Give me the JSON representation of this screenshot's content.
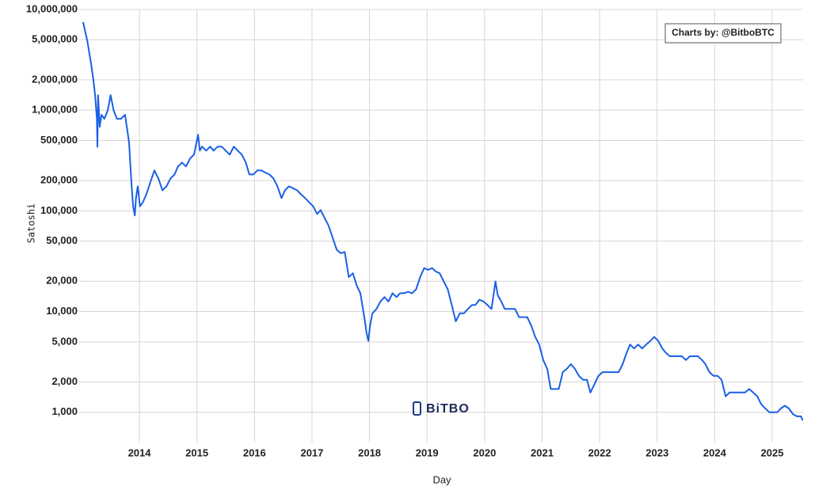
{
  "chart_data": {
    "type": "line",
    "x_label": "Day",
    "y_label": "Satoshi",
    "annotation": "Charts by: @BitboBTC",
    "watermark": "BiTBO",
    "log_y": true,
    "grid": true,
    "xlim": [
      2012.953,
      2025.537
    ],
    "xticks": [
      2014,
      2015,
      2016,
      2017,
      2018,
      2019,
      2020,
      2021,
      2022,
      2023,
      2024,
      2025
    ],
    "ylim": [
      500,
      10000000
    ],
    "yticks": [
      {
        "value": 1000,
        "label": "1,000"
      },
      {
        "value": 2000,
        "label": "2,000"
      },
      {
        "value": 5000,
        "label": "5,000"
      },
      {
        "value": 10000,
        "label": "10,000"
      },
      {
        "value": 20000,
        "label": "20,000"
      },
      {
        "value": 50000,
        "label": "50,000"
      },
      {
        "value": 100000,
        "label": "100,000"
      },
      {
        "value": 200000,
        "label": "200,000"
      },
      {
        "value": 500000,
        "label": "500,000"
      },
      {
        "value": 1000000,
        "label": "1,000,000"
      },
      {
        "value": 2000000,
        "label": "2,000,000"
      },
      {
        "value": 5000000,
        "label": "5,000,000"
      },
      {
        "value": 10000000,
        "label": "10,000,000"
      }
    ],
    "series": [
      {
        "color": "#1a5fe6",
        "x": [
          2013.02,
          2013.09,
          2013.16,
          2013.2,
          2013.23,
          2013.26,
          2013.27,
          2013.28,
          2013.31,
          2013.34,
          2013.39,
          2013.45,
          2013.5,
          2013.55,
          2013.61,
          2013.68,
          2013.75,
          2013.78,
          2013.82,
          2013.86,
          2013.89,
          2013.92,
          2013.94,
          2013.97,
          2014.01,
          2014.06,
          2014.12,
          2014.19,
          2014.26,
          2014.33,
          2014.4,
          2014.47,
          2014.54,
          2014.61,
          2014.67,
          2014.74,
          2014.81,
          2014.88,
          2014.95,
          2015.02,
          2015.05,
          2015.09,
          2015.16,
          2015.23,
          2015.29,
          2015.36,
          2015.43,
          2015.5,
          2015.57,
          2015.64,
          2015.71,
          2015.78,
          2015.85,
          2015.91,
          2015.98,
          2016.05,
          2016.12,
          2016.19,
          2016.26,
          2016.33,
          2016.4,
          2016.47,
          2016.53,
          2016.6,
          2016.67,
          2016.74,
          2016.81,
          2016.88,
          2016.95,
          2017.02,
          2017.09,
          2017.15,
          2017.22,
          2017.29,
          2017.36,
          2017.43,
          2017.5,
          2017.57,
          2017.64,
          2017.71,
          2017.78,
          2017.84,
          2017.91,
          2017.95,
          2017.98,
          2018.01,
          2018.05,
          2018.12,
          2018.19,
          2018.26,
          2018.33,
          2018.4,
          2018.47,
          2018.53,
          2018.6,
          2018.67,
          2018.74,
          2018.81,
          2018.88,
          2018.95,
          2019.02,
          2019.09,
          2019.15,
          2019.22,
          2019.29,
          2019.36,
          2019.43,
          2019.5,
          2019.57,
          2019.64,
          2019.71,
          2019.78,
          2019.84,
          2019.91,
          2019.98,
          2020.05,
          2020.12,
          2020.19,
          2020.23,
          2020.29,
          2020.35,
          2020.4,
          2020.47,
          2020.53,
          2020.6,
          2020.67,
          2020.74,
          2020.81,
          2020.88,
          2020.95,
          2021.02,
          2021.09,
          2021.15,
          2021.22,
          2021.29,
          2021.36,
          2021.43,
          2021.5,
          2021.57,
          2021.64,
          2021.71,
          2021.78,
          2021.84,
          2021.91,
          2021.98,
          2022.05,
          2022.12,
          2022.19,
          2022.26,
          2022.33,
          2022.4,
          2022.47,
          2022.53,
          2022.6,
          2022.67,
          2022.74,
          2022.81,
          2022.88,
          2022.95,
          2023.02,
          2023.09,
          2023.15,
          2023.22,
          2023.29,
          2023.36,
          2023.43,
          2023.5,
          2023.57,
          2023.64,
          2023.71,
          2023.78,
          2023.84,
          2023.91,
          2023.98,
          2024.05,
          2024.12,
          2024.19,
          2024.26,
          2024.33,
          2024.4,
          2024.47,
          2024.53,
          2024.6,
          2024.67,
          2024.74,
          2024.81,
          2024.88,
          2024.95,
          2025.02,
          2025.09,
          2025.15,
          2025.22,
          2025.29,
          2025.36,
          2025.43,
          2025.5,
          2025.53
        ],
        "values": [
          7500000,
          5000000,
          2900000,
          2000000,
          1410000,
          820000,
          435000,
          1410000,
          684000,
          900000,
          820000,
          1000000,
          1410000,
          1000000,
          820000,
          820000,
          900000,
          684000,
          475000,
          192000,
          111000,
          90000,
          134000,
          175000,
          111000,
          122000,
          146000,
          192000,
          252000,
          210000,
          160000,
          175000,
          210000,
          230000,
          276000,
          302000,
          276000,
          331000,
          362000,
          570000,
          396000,
          435000,
          396000,
          435000,
          396000,
          435000,
          435000,
          396000,
          362000,
          435000,
          396000,
          362000,
          302000,
          230000,
          230000,
          252000,
          252000,
          240000,
          230000,
          210000,
          175000,
          134000,
          160000,
          175000,
          168000,
          160000,
          146000,
          134000,
          122000,
          111000,
          93000,
          102000,
          85000,
          71000,
          54000,
          41000,
          38000,
          39000,
          22000,
          24000,
          18000,
          15200,
          8800,
          6100,
          5100,
          7300,
          9600,
          10600,
          12600,
          13900,
          12600,
          15200,
          13900,
          15200,
          15200,
          15700,
          15200,
          16600,
          22000,
          27000,
          26000,
          27000,
          25000,
          24000,
          19900,
          16600,
          11600,
          8000,
          9600,
          9600,
          10600,
          11600,
          11600,
          13100,
          12600,
          11600,
          10600,
          19900,
          14500,
          12600,
          10600,
          10600,
          10600,
          10600,
          8800,
          8800,
          8800,
          7300,
          5600,
          4700,
          3300,
          2700,
          1700,
          1700,
          1700,
          2500,
          2700,
          3000,
          2700,
          2300,
          2100,
          2100,
          1570,
          1900,
          2300,
          2500,
          2500,
          2500,
          2500,
          2500,
          3000,
          3900,
          4700,
          4300,
          4700,
          4300,
          4700,
          5100,
          5600,
          5100,
          4300,
          3900,
          3600,
          3600,
          3600,
          3600,
          3300,
          3600,
          3600,
          3600,
          3300,
          3000,
          2500,
          2300,
          2300,
          2100,
          1440,
          1570,
          1570,
          1570,
          1570,
          1570,
          1700,
          1570,
          1440,
          1200,
          1090,
          1000,
          1000,
          1000,
          1090,
          1160,
          1090,
          960,
          910,
          910,
          830
        ]
      }
    ]
  }
}
